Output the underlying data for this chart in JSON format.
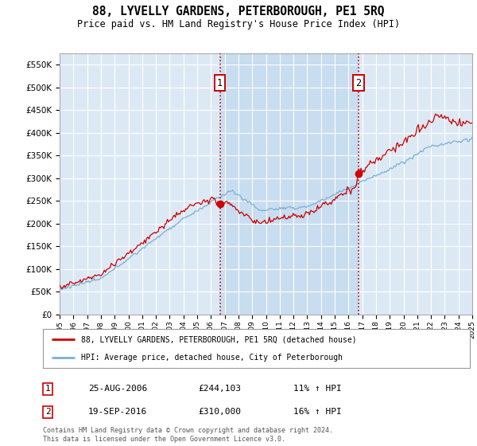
{
  "title": "88, LYVELLY GARDENS, PETERBOROUGH, PE1 5RQ",
  "subtitle": "Price paid vs. HM Land Registry's House Price Index (HPI)",
  "bg_color": "#dce9f5",
  "shaded_color": "#c8ddf0",
  "grid_color": "#ffffff",
  "red_color": "#cc0000",
  "blue_color": "#7bafd4",
  "ylim": [
    0,
    575000
  ],
  "yticks": [
    0,
    50000,
    100000,
    150000,
    200000,
    250000,
    300000,
    350000,
    400000,
    450000,
    500000,
    550000
  ],
  "ytick_labels": [
    "£0",
    "£50K",
    "£100K",
    "£150K",
    "£200K",
    "£250K",
    "£300K",
    "£350K",
    "£400K",
    "£450K",
    "£500K",
    "£550K"
  ],
  "sale1_date": 2006.65,
  "sale1_price": 244103,
  "sale1_label": "1",
  "sale2_date": 2016.72,
  "sale2_price": 310000,
  "sale2_label": "2",
  "legend_line1": "88, LYVELLY GARDENS, PETERBOROUGH, PE1 5RQ (detached house)",
  "legend_line2": "HPI: Average price, detached house, City of Peterborough",
  "table_row1": [
    "1",
    "25-AUG-2006",
    "£244,103",
    "11% ↑ HPI"
  ],
  "table_row2": [
    "2",
    "19-SEP-2016",
    "£310,000",
    "16% ↑ HPI"
  ],
  "footnote": "Contains HM Land Registry data © Crown copyright and database right 2024.\nThis data is licensed under the Open Government Licence v3.0.",
  "xmin": 1995,
  "xmax": 2025
}
